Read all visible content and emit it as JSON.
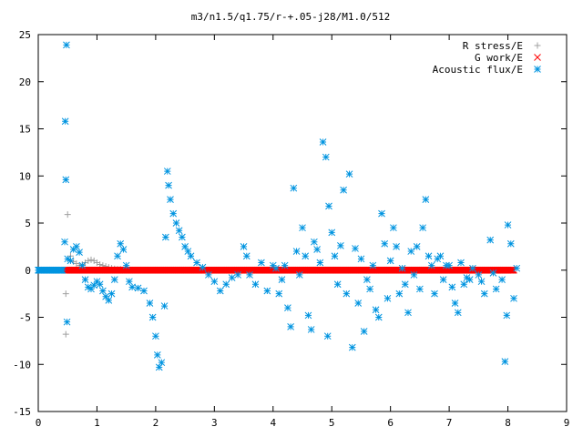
{
  "chart_data": {
    "type": "scatter",
    "title": "m3/n1.5/q1.75/r-+.05-j28/M1.0/512",
    "xlabel": "",
    "ylabel": "",
    "xlim": [
      0,
      9
    ],
    "ylim": [
      -15,
      25
    ],
    "x_ticks": [
      "0",
      "1",
      "2",
      "3",
      "4",
      "5",
      "6",
      "7",
      "8",
      "9"
    ],
    "y_ticks": [
      "-15",
      "-10",
      "-5",
      "0",
      "5",
      "10",
      "15",
      "20",
      "25"
    ],
    "grid": false,
    "legend_position": "top-right",
    "series": [
      {
        "name": "R stress/E",
        "marker": "plus",
        "color": "#a0a0a0",
        "points": [
          [
            0.45,
            0
          ],
          [
            0.47,
            -2.5
          ],
          [
            0.47,
            -6.8
          ],
          [
            0.5,
            5.9
          ],
          [
            0.55,
            1.5
          ],
          [
            0.6,
            0.9
          ],
          [
            0.65,
            0.7
          ],
          [
            0.7,
            0.5
          ],
          [
            0.75,
            0.6
          ],
          [
            0.8,
            0.8
          ],
          [
            0.85,
            1.0
          ],
          [
            0.9,
            1.1
          ],
          [
            0.95,
            1.0
          ],
          [
            1.0,
            0.8
          ],
          [
            1.05,
            0.6
          ],
          [
            1.1,
            0.5
          ],
          [
            1.15,
            0.4
          ],
          [
            1.2,
            0.3
          ],
          [
            1.25,
            0.2
          ],
          [
            1.3,
            0.15
          ],
          [
            1.35,
            0.1
          ],
          [
            1.4,
            0.1
          ],
          [
            1.5,
            0.05
          ],
          [
            1.6,
            0.02
          ],
          [
            1.7,
            0
          ],
          [
            1.8,
            0
          ],
          [
            2.0,
            0
          ],
          [
            2.5,
            0
          ],
          [
            3.0,
            0
          ],
          [
            4.0,
            0
          ],
          [
            5.0,
            0
          ],
          [
            6.0,
            0
          ],
          [
            7.0,
            0
          ],
          [
            8.0,
            0
          ]
        ]
      },
      {
        "name": "G work/E",
        "marker": "cross",
        "color": "#ff0000",
        "x_range": [
          0.45,
          8.1
        ],
        "y": 0
      },
      {
        "name": "Acoustic flux/E",
        "marker": "star",
        "color": "#0094e0",
        "points": [
          [
            0.01,
            0
          ],
          [
            0.05,
            0
          ],
          [
            0.1,
            0
          ],
          [
            0.15,
            0
          ],
          [
            0.2,
            0
          ],
          [
            0.25,
            0
          ],
          [
            0.3,
            0
          ],
          [
            0.35,
            0
          ],
          [
            0.4,
            0
          ],
          [
            0.45,
            3.0
          ],
          [
            0.46,
            15.8
          ],
          [
            0.47,
            9.6
          ],
          [
            0.48,
            23.9
          ],
          [
            0.49,
            -5.5
          ],
          [
            0.5,
            1.2
          ],
          [
            0.55,
            1.0
          ],
          [
            0.6,
            2.2
          ],
          [
            0.65,
            2.5
          ],
          [
            0.7,
            1.9
          ],
          [
            0.75,
            0.5
          ],
          [
            0.8,
            -1.0
          ],
          [
            0.85,
            -1.8
          ],
          [
            0.9,
            -2.0
          ],
          [
            0.95,
            -1.6
          ],
          [
            1.0,
            -1.2
          ],
          [
            1.05,
            -1.5
          ],
          [
            1.1,
            -2.2
          ],
          [
            1.15,
            -2.8
          ],
          [
            1.2,
            -3.2
          ],
          [
            1.25,
            -2.5
          ],
          [
            1.3,
            -1.0
          ],
          [
            1.35,
            1.5
          ],
          [
            1.4,
            2.8
          ],
          [
            1.45,
            2.2
          ],
          [
            1.5,
            0.5
          ],
          [
            1.55,
            -1.2
          ],
          [
            1.6,
            -1.8
          ],
          [
            1.7,
            -1.9
          ],
          [
            1.8,
            -2.2
          ],
          [
            1.9,
            -3.5
          ],
          [
            1.95,
            -5.0
          ],
          [
            2.0,
            -7.0
          ],
          [
            2.03,
            -9.0
          ],
          [
            2.06,
            -10.3
          ],
          [
            2.1,
            -9.8
          ],
          [
            2.15,
            -3.8
          ],
          [
            2.17,
            3.5
          ],
          [
            2.2,
            10.5
          ],
          [
            2.22,
            9.0
          ],
          [
            2.25,
            7.5
          ],
          [
            2.3,
            6.0
          ],
          [
            2.35,
            5.0
          ],
          [
            2.4,
            4.2
          ],
          [
            2.45,
            3.5
          ],
          [
            2.5,
            2.5
          ],
          [
            2.55,
            2.0
          ],
          [
            2.6,
            1.5
          ],
          [
            2.7,
            0.8
          ],
          [
            2.8,
            0.3
          ],
          [
            2.9,
            -0.5
          ],
          [
            3.0,
            -1.2
          ],
          [
            3.1,
            -2.2
          ],
          [
            3.2,
            -1.5
          ],
          [
            3.3,
            -0.8
          ],
          [
            3.4,
            -0.5
          ],
          [
            3.5,
            2.5
          ],
          [
            3.55,
            1.5
          ],
          [
            3.6,
            -0.5
          ],
          [
            3.7,
            -1.5
          ],
          [
            3.8,
            0.8
          ],
          [
            3.9,
            -2.2
          ],
          [
            4.0,
            0.5
          ],
          [
            4.05,
            0.2
          ],
          [
            4.1,
            -2.5
          ],
          [
            4.15,
            -1.0
          ],
          [
            4.2,
            0.5
          ],
          [
            4.25,
            -4.0
          ],
          [
            4.3,
            -6.0
          ],
          [
            4.35,
            8.7
          ],
          [
            4.4,
            2.0
          ],
          [
            4.45,
            -0.5
          ],
          [
            4.5,
            4.5
          ],
          [
            4.55,
            1.5
          ],
          [
            4.6,
            -4.8
          ],
          [
            4.65,
            -6.3
          ],
          [
            4.7,
            3.0
          ],
          [
            4.75,
            2.2
          ],
          [
            4.8,
            0.8
          ],
          [
            4.85,
            13.6
          ],
          [
            4.9,
            12.0
          ],
          [
            4.93,
            -7.0
          ],
          [
            4.95,
            6.8
          ],
          [
            5.0,
            4.0
          ],
          [
            5.05,
            1.5
          ],
          [
            5.1,
            -1.5
          ],
          [
            5.15,
            2.6
          ],
          [
            5.2,
            8.5
          ],
          [
            5.25,
            -2.5
          ],
          [
            5.3,
            10.2
          ],
          [
            5.35,
            -8.2
          ],
          [
            5.4,
            2.3
          ],
          [
            5.45,
            -3.5
          ],
          [
            5.5,
            1.2
          ],
          [
            5.55,
            -6.5
          ],
          [
            5.6,
            -1.0
          ],
          [
            5.65,
            -2.0
          ],
          [
            5.7,
            0.5
          ],
          [
            5.75,
            -4.2
          ],
          [
            5.8,
            -5.0
          ],
          [
            5.85,
            6.0
          ],
          [
            5.9,
            2.8
          ],
          [
            5.95,
            -3.0
          ],
          [
            6.0,
            1.0
          ],
          [
            6.05,
            4.5
          ],
          [
            6.1,
            2.5
          ],
          [
            6.15,
            -2.5
          ],
          [
            6.2,
            0.2
          ],
          [
            6.25,
            -1.5
          ],
          [
            6.3,
            -4.5
          ],
          [
            6.35,
            2.0
          ],
          [
            6.4,
            -0.5
          ],
          [
            6.45,
            2.5
          ],
          [
            6.5,
            -2.0
          ],
          [
            6.55,
            4.5
          ],
          [
            6.6,
            7.5
          ],
          [
            6.65,
            1.5
          ],
          [
            6.7,
            0.5
          ],
          [
            6.75,
            -2.5
          ],
          [
            6.8,
            1.2
          ],
          [
            6.85,
            1.5
          ],
          [
            6.9,
            -1.0
          ],
          [
            6.95,
            0.5
          ],
          [
            7.0,
            0.5
          ],
          [
            7.05,
            -1.8
          ],
          [
            7.1,
            -3.5
          ],
          [
            7.15,
            -4.5
          ],
          [
            7.2,
            0.8
          ],
          [
            7.25,
            -1.5
          ],
          [
            7.3,
            -0.8
          ],
          [
            7.35,
            -1.0
          ],
          [
            7.4,
            0.2
          ],
          [
            7.5,
            -0.5
          ],
          [
            7.55,
            -1.2
          ],
          [
            7.6,
            -2.5
          ],
          [
            7.7,
            3.2
          ],
          [
            7.75,
            -0.3
          ],
          [
            7.8,
            -2.0
          ],
          [
            7.9,
            -1.0
          ],
          [
            7.95,
            -9.7
          ],
          [
            7.98,
            -4.8
          ],
          [
            8.0,
            4.8
          ],
          [
            8.05,
            2.8
          ],
          [
            8.1,
            -3.0
          ],
          [
            8.15,
            0.2
          ]
        ]
      }
    ]
  }
}
